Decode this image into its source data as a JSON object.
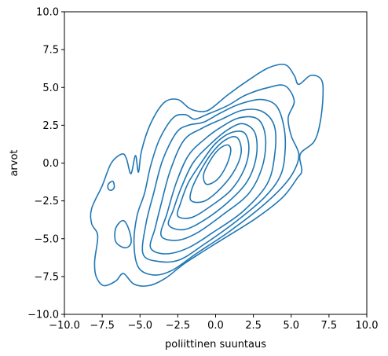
{
  "chart_data": {
    "type": "kde-contour",
    "title": "",
    "xlabel": "poliittinen suuntaus",
    "ylabel": "arvot",
    "xlim": [
      -10,
      10
    ],
    "ylim": [
      -10,
      10
    ],
    "x_ticks": [
      "−10.0",
      "−7.5",
      "−5.0",
      "−2.5",
      "0.0",
      "2.5",
      "5.0",
      "7.5",
      "10.0"
    ],
    "y_ticks": [
      "10.0",
      "7.5",
      "5.0",
      "2.5",
      "0.0",
      "−2.5",
      "−5.0",
      "−7.5",
      "−10.0"
    ],
    "color": "#1f77b4",
    "grid": false,
    "series": [
      {
        "level": 1,
        "points": [
          [
            -7.9,
            -7.5
          ],
          [
            -7.4,
            -8.1
          ],
          [
            -6.6,
            -7.8
          ],
          [
            -6.1,
            -7.3
          ],
          [
            -5.4,
            -8.0
          ],
          [
            -4.4,
            -8.1
          ],
          [
            -3.3,
            -7.6
          ],
          [
            -2.0,
            -6.6
          ],
          [
            0.2,
            -5.2
          ],
          [
            2.6,
            -3.7
          ],
          [
            4.4,
            -2.3
          ],
          [
            5.4,
            -1.0
          ],
          [
            5.7,
            -0.5
          ],
          [
            5.6,
            0.6
          ],
          [
            6.5,
            1.4
          ],
          [
            6.9,
            2.6
          ],
          [
            7.1,
            4.4
          ],
          [
            7.0,
            5.5
          ],
          [
            6.3,
            5.8
          ],
          [
            5.5,
            5.2
          ],
          [
            5.2,
            5.8
          ],
          [
            4.6,
            6.5
          ],
          [
            3.5,
            6.3
          ],
          [
            2.2,
            5.5
          ],
          [
            0.8,
            4.5
          ],
          [
            -0.3,
            3.6
          ],
          [
            -0.9,
            3.4
          ],
          [
            -1.7,
            3.6
          ],
          [
            -2.5,
            4.2
          ],
          [
            -3.4,
            4.0
          ],
          [
            -4.3,
            2.6
          ],
          [
            -4.9,
            0.8
          ],
          [
            -5.1,
            -0.6
          ],
          [
            -5.3,
            0.5
          ],
          [
            -5.6,
            -0.7
          ],
          [
            -5.9,
            0.3
          ],
          [
            -6.2,
            0.6
          ],
          [
            -6.9,
            0.0
          ],
          [
            -7.5,
            -1.5
          ],
          [
            -8.2,
            -3.0
          ],
          [
            -8.2,
            -4.0
          ],
          [
            -7.8,
            -4.8
          ],
          [
            -8.0,
            -6.5
          ]
        ]
      },
      {
        "level": 2,
        "points": [
          [
            -5.1,
            -6.9
          ],
          [
            -4.1,
            -7.4
          ],
          [
            -2.9,
            -7.1
          ],
          [
            -1.3,
            -6.0
          ],
          [
            0.8,
            -4.6
          ],
          [
            2.9,
            -3.0
          ],
          [
            4.4,
            -1.6
          ],
          [
            5.2,
            -0.5
          ],
          [
            5.5,
            0.6
          ],
          [
            5.0,
            1.8
          ],
          [
            4.8,
            3.0
          ],
          [
            5.2,
            4.1
          ],
          [
            4.6,
            5.1
          ],
          [
            3.5,
            5.0
          ],
          [
            2.0,
            4.5
          ],
          [
            0.8,
            3.8
          ],
          [
            -0.6,
            3.2
          ],
          [
            -1.4,
            2.9
          ],
          [
            -2.0,
            3.2
          ],
          [
            -2.8,
            3.0
          ],
          [
            -3.7,
            1.6
          ],
          [
            -4.3,
            -0.2
          ],
          [
            -4.7,
            -2.0
          ],
          [
            -5.2,
            -3.5
          ],
          [
            -5.4,
            -5.3
          ]
        ]
      },
      {
        "level": 3,
        "points": [
          [
            -4.8,
            -6.0
          ],
          [
            -3.8,
            -6.5
          ],
          [
            -2.4,
            -6.4
          ],
          [
            -0.8,
            -5.4
          ],
          [
            1.3,
            -3.9
          ],
          [
            3.2,
            -2.3
          ],
          [
            4.3,
            -0.8
          ],
          [
            4.6,
            0.9
          ],
          [
            4.5,
            2.5
          ],
          [
            4.0,
            3.8
          ],
          [
            3.0,
            4.2
          ],
          [
            1.6,
            3.9
          ],
          [
            0.3,
            3.3
          ],
          [
            -0.8,
            2.7
          ],
          [
            -1.8,
            2.5
          ],
          [
            -2.6,
            2.0
          ],
          [
            -3.5,
            0.2
          ],
          [
            -4.1,
            -2.0
          ],
          [
            -4.6,
            -4.0
          ]
        ]
      },
      {
        "level": 4,
        "points": [
          [
            -4.3,
            -5.6
          ],
          [
            -3.3,
            -6.0
          ],
          [
            -1.8,
            -5.6
          ],
          [
            -0.2,
            -4.6
          ],
          [
            1.8,
            -3.2
          ],
          [
            3.4,
            -1.4
          ],
          [
            3.9,
            0.5
          ],
          [
            3.9,
            2.4
          ],
          [
            3.1,
            3.4
          ],
          [
            1.8,
            3.5
          ],
          [
            0.4,
            2.9
          ],
          [
            -0.9,
            2.3
          ],
          [
            -2.1,
            1.5
          ],
          [
            -3.0,
            -0.5
          ],
          [
            -3.6,
            -2.7
          ],
          [
            -4.0,
            -4.3
          ]
        ]
      },
      {
        "level": 5,
        "points": [
          [
            -3.6,
            -4.8
          ],
          [
            -2.5,
            -5.1
          ],
          [
            -1.2,
            -4.6
          ],
          [
            0.5,
            -3.4
          ],
          [
            2.2,
            -2.0
          ],
          [
            3.1,
            -0.2
          ],
          [
            3.3,
            1.7
          ],
          [
            2.8,
            2.9
          ],
          [
            1.6,
            3.0
          ],
          [
            0.4,
            2.4
          ],
          [
            -0.7,
            1.6
          ],
          [
            -1.8,
            0.5
          ],
          [
            -2.6,
            -1.3
          ],
          [
            -3.2,
            -3.3
          ]
        ]
      },
      {
        "level": 6,
        "points": [
          [
            -3.1,
            -4.1
          ],
          [
            -2.1,
            -4.4
          ],
          [
            -0.8,
            -3.8
          ],
          [
            0.8,
            -2.6
          ],
          [
            2.1,
            -1.2
          ],
          [
            2.7,
            0.5
          ],
          [
            2.6,
            2.0
          ],
          [
            1.8,
            2.6
          ],
          [
            0.8,
            2.2
          ],
          [
            -0.4,
            1.2
          ],
          [
            -1.5,
            0.0
          ],
          [
            -2.3,
            -1.7
          ],
          [
            -2.8,
            -3.1
          ]
        ]
      },
      {
        "level": 7,
        "points": [
          [
            -2.5,
            -3.5
          ],
          [
            -1.6,
            -3.6
          ],
          [
            -0.4,
            -2.9
          ],
          [
            1.0,
            -1.8
          ],
          [
            1.9,
            -0.4
          ],
          [
            2.2,
            1.0
          ],
          [
            1.9,
            2.0
          ],
          [
            1.0,
            2.0
          ],
          [
            0.0,
            1.3
          ],
          [
            -0.9,
            0.1
          ],
          [
            -1.8,
            -1.3
          ],
          [
            -2.3,
            -2.6
          ]
        ]
      },
      {
        "level": 8,
        "points": [
          [
            -1.6,
            -2.5
          ],
          [
            -0.7,
            -2.5
          ],
          [
            0.4,
            -1.6
          ],
          [
            1.3,
            -0.4
          ],
          [
            1.7,
            0.8
          ],
          [
            1.4,
            1.7
          ],
          [
            0.6,
            1.5
          ],
          [
            -0.3,
            0.6
          ],
          [
            -1.1,
            -0.7
          ],
          [
            -1.6,
            -1.8
          ]
        ]
      },
      {
        "level": 9,
        "points": [
          [
            -0.6,
            -1.4
          ],
          [
            0.1,
            -1.1
          ],
          [
            0.7,
            -0.2
          ],
          [
            1.0,
            0.8
          ],
          [
            0.8,
            1.2
          ],
          [
            0.2,
            0.9
          ],
          [
            -0.4,
            0.1
          ],
          [
            -0.8,
            -0.8
          ]
        ]
      },
      {
        "level": 10,
        "points": [
          [
            -6.0,
            -5.6
          ],
          [
            -5.6,
            -5.3
          ],
          [
            -5.7,
            -4.5
          ],
          [
            -6.1,
            -3.8
          ],
          [
            -6.6,
            -4.3
          ],
          [
            -6.6,
            -5.2
          ]
        ]
      },
      {
        "level": 11,
        "points": [
          [
            -6.9,
            -1.8
          ],
          [
            -6.7,
            -1.6
          ],
          [
            -6.8,
            -1.2
          ],
          [
            -7.1,
            -1.4
          ],
          [
            -7.1,
            -1.7
          ]
        ]
      }
    ]
  }
}
